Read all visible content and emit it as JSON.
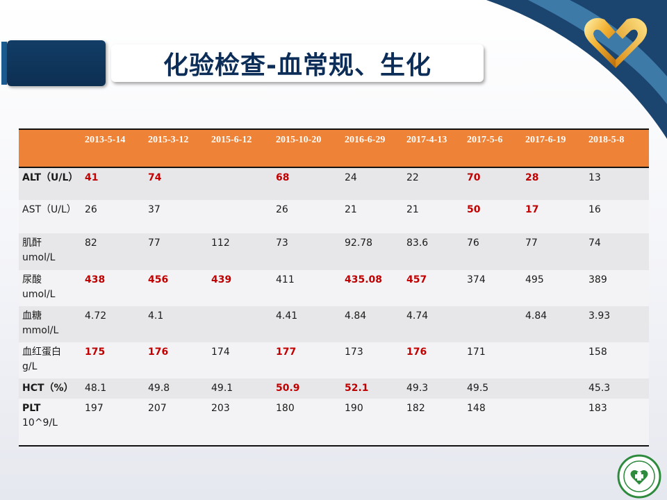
{
  "title": "化验检查-血常规、生化",
  "colors": {
    "header_bg": "#ee8236",
    "highlight": "#c00000",
    "navy": "#0b2d57"
  },
  "icons": {
    "top_logo": "heart-logo-icon",
    "bottom_emblem": "hospital-emblem-icon"
  },
  "table": {
    "columns": [
      "",
      "2013-5-14",
      "2015-3-12",
      "2015-6-12",
      "2015-10-20",
      "2016-6-29",
      "2017-4-13",
      "2017-5-6",
      "2017-6-19",
      "2018-5-8"
    ],
    "rows": [
      {
        "label": [
          "ALT（U/L）"
        ],
        "bold_label": true,
        "height": 47,
        "cells": [
          {
            "v": "41",
            "hl": true
          },
          {
            "v": "74",
            "hl": true
          },
          {
            "v": ""
          },
          {
            "v": "68",
            "hl": true
          },
          {
            "v": "24"
          },
          {
            "v": "22"
          },
          {
            "v": "70",
            "hl": true
          },
          {
            "v": "28",
            "hl": true
          },
          {
            "v": "13"
          }
        ]
      },
      {
        "label": [
          "AST（U/L）"
        ],
        "bold_label": false,
        "height": 48,
        "cells": [
          {
            "v": "26"
          },
          {
            "v": "37"
          },
          {
            "v": ""
          },
          {
            "v": "26"
          },
          {
            "v": "21"
          },
          {
            "v": "21"
          },
          {
            "v": "50",
            "hl": true
          },
          {
            "v": "17",
            "hl": true
          },
          {
            "v": "16"
          }
        ]
      },
      {
        "label": [
          "肌酐",
          "umol/L"
        ],
        "bold_label": false,
        "height": 53,
        "cells": [
          {
            "v": "82"
          },
          {
            "v": "77"
          },
          {
            "v": "112"
          },
          {
            "v": "73"
          },
          {
            "v": "92.78"
          },
          {
            "v": "83.6"
          },
          {
            "v": "76"
          },
          {
            "v": "77"
          },
          {
            "v": "74"
          }
        ]
      },
      {
        "label": [
          "尿酸",
          "umol/L"
        ],
        "bold_label": false,
        "height": 52,
        "cells": [
          {
            "v": "438",
            "hl": true
          },
          {
            "v": "456",
            "hl": true
          },
          {
            "v": "439",
            "hl": true
          },
          {
            "v": "411"
          },
          {
            "v": "435.08",
            "hl": true
          },
          {
            "v": "457",
            "hl": true
          },
          {
            "v": "374"
          },
          {
            "v": "495"
          },
          {
            "v": "389"
          }
        ]
      },
      {
        "label": [
          "血糖",
          "mmol/L"
        ],
        "bold_label": false,
        "height": 52,
        "cells": [
          {
            "v": "4.72"
          },
          {
            "v": "4.1"
          },
          {
            "v": ""
          },
          {
            "v": "4.41"
          },
          {
            "v": "4.84"
          },
          {
            "v": "4.74"
          },
          {
            "v": ""
          },
          {
            "v": "4.84"
          },
          {
            "v": "3.93"
          }
        ]
      },
      {
        "label": [
          "血红蛋白",
          "g/L"
        ],
        "bold_label": false,
        "height": 52,
        "cells": [
          {
            "v": "175",
            "hl": true
          },
          {
            "v": "176",
            "hl": true
          },
          {
            "v": "174"
          },
          {
            "v": "177",
            "hl": true
          },
          {
            "v": "173"
          },
          {
            "v": "176",
            "hl": true
          },
          {
            "v": "171"
          },
          {
            "v": ""
          },
          {
            "v": "158"
          }
        ]
      },
      {
        "label": [
          "HCT（%）"
        ],
        "bold_label": true,
        "height": 29,
        "cells": [
          {
            "v": "48.1"
          },
          {
            "v": "49.8"
          },
          {
            "v": "49.1"
          },
          {
            "v": "50.9",
            "hl": true
          },
          {
            "v": "52.1",
            "hl": true
          },
          {
            "v": "49.3"
          },
          {
            "v": "49.5"
          },
          {
            "v": ""
          },
          {
            "v": "45.3"
          }
        ]
      },
      {
        "label": [
          "PLT",
          "10^9/L"
        ],
        "bold_label": false,
        "bold_first_line": true,
        "height": 68,
        "cells": [
          {
            "v": "197"
          },
          {
            "v": "207"
          },
          {
            "v": "203"
          },
          {
            "v": "180"
          },
          {
            "v": "190"
          },
          {
            "v": "182"
          },
          {
            "v": "148"
          },
          {
            "v": ""
          },
          {
            "v": "183"
          }
        ]
      }
    ]
  }
}
